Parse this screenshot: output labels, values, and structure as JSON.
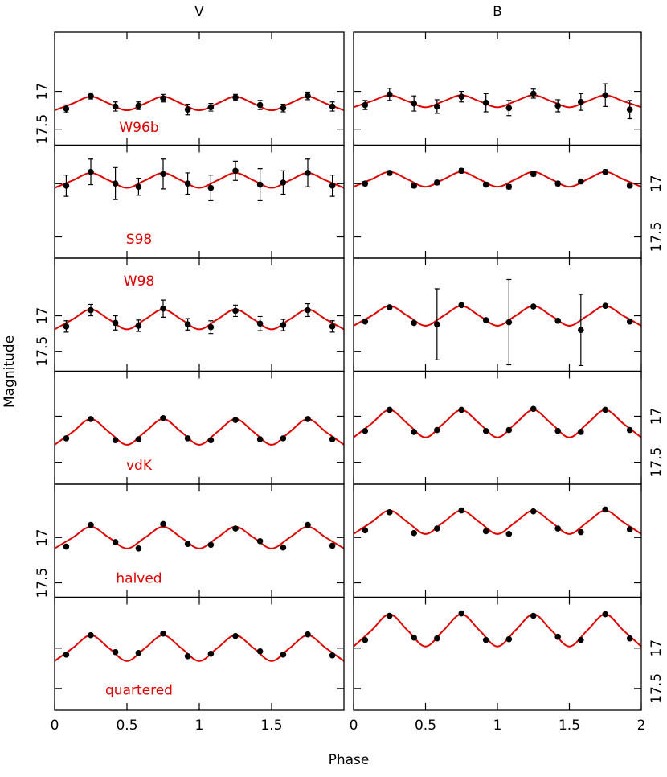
{
  "figure": {
    "xlabel": "Phase",
    "ylabel": "Magnitude"
  },
  "chart_data": [
    {
      "type": "scatter",
      "title": "V",
      "label": "W96b",
      "ylim": [
        17.71,
        16.22
      ],
      "yticks": [
        17,
        17.5
      ],
      "ytick_label_side": "left",
      "xlim": [
        0,
        2
      ],
      "xticks": [
        0,
        0.5,
        1,
        1.5
      ],
      "xtick_labels": false,
      "points": {
        "color": "#000000",
        "x": [
          0.08,
          0.25,
          0.42,
          0.58,
          0.75,
          0.92,
          1.08,
          1.25,
          1.42,
          1.58,
          1.75,
          1.92
        ],
        "y": [
          17.23,
          17.06,
          17.2,
          17.19,
          17.09,
          17.24,
          17.21,
          17.08,
          17.18,
          17.22,
          17.06,
          17.2
        ],
        "err": [
          0.05,
          0.04,
          0.06,
          0.05,
          0.05,
          0.07,
          0.05,
          0.04,
          0.06,
          0.05,
          0.05,
          0.06
        ]
      },
      "model": {
        "color": "#e00000",
        "x": [
          0,
          0.125,
          0.25,
          0.375,
          0.5,
          0.625,
          0.75,
          0.875,
          1,
          1.125,
          1.25,
          1.375,
          1.5,
          1.625,
          1.75,
          1.875,
          2
        ],
        "y": [
          17.25,
          17.16,
          17.07,
          17.16,
          17.25,
          17.16,
          17.07,
          17.16,
          17.25,
          17.16,
          17.07,
          17.16,
          17.25,
          17.16,
          17.07,
          17.16,
          17.25
        ]
      }
    },
    {
      "type": "scatter",
      "title": "B",
      "ylim": [
        17.71,
        16.22
      ],
      "yticks": [
        17,
        17.5
      ],
      "ytick_label_side": "none",
      "xlim": [
        0,
        2
      ],
      "xticks": [
        0,
        0.5,
        1,
        1.5,
        2
      ],
      "xtick_labels": false,
      "points": {
        "color": "#000000",
        "x": [
          0.08,
          0.25,
          0.42,
          0.58,
          0.75,
          0.92,
          1.08,
          1.25,
          1.42,
          1.58,
          1.75,
          1.92
        ],
        "y": [
          17.18,
          17.04,
          17.16,
          17.2,
          17.07,
          17.15,
          17.22,
          17.03,
          17.19,
          17.14,
          17.05,
          17.24
        ],
        "err": [
          0.06,
          0.08,
          0.1,
          0.09,
          0.07,
          0.12,
          0.1,
          0.06,
          0.08,
          0.11,
          0.15,
          0.12
        ]
      },
      "model": {
        "color": "#e00000",
        "x": [
          0,
          0.125,
          0.25,
          0.375,
          0.5,
          0.625,
          0.75,
          0.875,
          1,
          1.125,
          1.25,
          1.375,
          1.5,
          1.625,
          1.75,
          1.875,
          2
        ],
        "y": [
          17.21,
          17.13,
          17.05,
          17.13,
          17.21,
          17.13,
          17.05,
          17.13,
          17.21,
          17.13,
          17.05,
          17.13,
          17.21,
          17.13,
          17.05,
          17.13,
          17.21
        ]
      }
    },
    {
      "type": "scatter",
      "label": "S98",
      "ylim": [
        17.7,
        16.64
      ],
      "yticks": [
        17,
        17.5
      ],
      "ytick_label_side": "none",
      "xlim": [
        0,
        2
      ],
      "xticks": [
        0,
        0.5,
        1,
        1.5
      ],
      "xtick_labels": false,
      "points": {
        "color": "#000000",
        "x": [
          0.08,
          0.25,
          0.42,
          0.58,
          0.75,
          0.92,
          1.08,
          1.25,
          1.42,
          1.58,
          1.75,
          1.92
        ],
        "y": [
          17.02,
          16.89,
          17.0,
          17.03,
          16.91,
          17.0,
          17.04,
          16.88,
          17.01,
          16.99,
          16.9,
          17.02
        ],
        "err": [
          0.1,
          0.12,
          0.15,
          0.08,
          0.14,
          0.1,
          0.12,
          0.09,
          0.15,
          0.11,
          0.13,
          0.1
        ]
      },
      "model": {
        "color": "#e00000",
        "x": [
          0,
          0.125,
          0.25,
          0.375,
          0.5,
          0.625,
          0.75,
          0.875,
          1,
          1.125,
          1.25,
          1.375,
          1.5,
          1.625,
          1.75,
          1.875,
          2
        ],
        "y": [
          17.04,
          16.97,
          16.9,
          16.97,
          17.04,
          16.97,
          16.9,
          16.97,
          17.04,
          16.97,
          16.9,
          16.97,
          17.04,
          16.97,
          16.9,
          16.97,
          17.04
        ]
      }
    },
    {
      "type": "scatter",
      "ylim": [
        17.7,
        16.64
      ],
      "yticks": [
        17,
        17.5
      ],
      "ytick_label_side": "right",
      "xlim": [
        0,
        2
      ],
      "xticks": [
        0,
        0.5,
        1,
        1.5,
        2
      ],
      "xtick_labels": false,
      "points": {
        "color": "#000000",
        "x": [
          0.08,
          0.25,
          0.42,
          0.58,
          0.75,
          0.92,
          1.08,
          1.25,
          1.42,
          1.58,
          1.75,
          1.92
        ],
        "y": [
          17.0,
          16.9,
          17.02,
          16.99,
          16.88,
          17.01,
          17.03,
          16.91,
          17.0,
          16.98,
          16.89,
          17.02
        ],
        "err": [
          0.02,
          0.02,
          0.02,
          0.02,
          0.02,
          0.02,
          0.02,
          0.02,
          0.02,
          0.02,
          0.02,
          0.02
        ]
      },
      "model": {
        "color": "#e00000",
        "x": [
          0,
          0.125,
          0.25,
          0.375,
          0.5,
          0.625,
          0.75,
          0.875,
          1,
          1.125,
          1.25,
          1.375,
          1.5,
          1.625,
          1.75,
          1.875,
          2
        ],
        "y": [
          17.03,
          16.96,
          16.89,
          16.96,
          17.03,
          16.96,
          16.89,
          16.96,
          17.03,
          16.96,
          16.89,
          16.96,
          17.03,
          16.96,
          16.89,
          16.96,
          17.03
        ]
      }
    },
    {
      "type": "scatter",
      "label": "W98",
      "ylim": [
        17.78,
        16.19
      ],
      "yticks": [
        17,
        17.5
      ],
      "ytick_label_side": "left",
      "xlim": [
        0,
        2
      ],
      "xticks": [
        0,
        0.5,
        1,
        1.5
      ],
      "xtick_labels": false,
      "points": {
        "color": "#000000",
        "x": [
          0.08,
          0.25,
          0.42,
          0.58,
          0.75,
          0.92,
          1.08,
          1.25,
          1.42,
          1.58,
          1.75,
          1.92
        ],
        "y": [
          17.15,
          16.92,
          17.1,
          17.14,
          16.9,
          17.12,
          17.16,
          16.93,
          17.11,
          17.13,
          16.92,
          17.15
        ],
        "err": [
          0.08,
          0.08,
          0.1,
          0.08,
          0.12,
          0.08,
          0.09,
          0.08,
          0.1,
          0.08,
          0.09,
          0.08
        ]
      },
      "model": {
        "color": "#e00000",
        "x": [
          0,
          0.125,
          0.25,
          0.375,
          0.5,
          0.625,
          0.75,
          0.875,
          1,
          1.125,
          1.25,
          1.375,
          1.5,
          1.625,
          1.75,
          1.875,
          2
        ],
        "y": [
          17.19,
          17.05,
          16.91,
          17.05,
          17.19,
          17.05,
          16.91,
          17.05,
          17.19,
          17.05,
          16.91,
          17.05,
          17.19,
          17.05,
          16.91,
          17.05,
          17.19
        ]
      }
    },
    {
      "type": "scatter",
      "ylim": [
        17.78,
        16.19
      ],
      "yticks": [
        17,
        17.5
      ],
      "ytick_label_side": "none",
      "xlim": [
        0,
        2
      ],
      "xticks": [
        0,
        0.5,
        1,
        1.5,
        2
      ],
      "xtick_labels": false,
      "points": {
        "color": "#000000",
        "x": [
          0.08,
          0.25,
          0.42,
          0.58,
          0.75,
          0.92,
          1.08,
          1.25,
          1.42,
          1.58,
          1.75,
          1.92
        ],
        "y": [
          17.08,
          16.88,
          17.1,
          17.12,
          16.85,
          17.06,
          17.09,
          16.87,
          17.07,
          17.2,
          16.86,
          17.08
        ],
        "err": [
          0.02,
          0.02,
          0.02,
          0.5,
          0.02,
          0.02,
          0.6,
          0.02,
          0.02,
          0.5,
          0.02,
          0.02
        ]
      },
      "model": {
        "color": "#e00000",
        "x": [
          0,
          0.125,
          0.25,
          0.375,
          0.5,
          0.625,
          0.75,
          0.875,
          1,
          1.125,
          1.25,
          1.375,
          1.5,
          1.625,
          1.75,
          1.875,
          2
        ],
        "y": [
          17.14,
          17.0,
          16.86,
          17.0,
          17.14,
          17.0,
          16.86,
          17.0,
          17.14,
          17.0,
          16.86,
          17.0,
          17.14,
          17.0,
          16.86,
          17.0,
          17.14
        ]
      }
    },
    {
      "type": "scatter",
      "label": "vdK",
      "ylim": [
        17.74,
        16.51
      ],
      "yticks": [
        17,
        17.5
      ],
      "ytick_label_side": "none",
      "xlim": [
        0,
        2
      ],
      "xticks": [
        0,
        0.5,
        1,
        1.5
      ],
      "xtick_labels": false,
      "points": {
        "color": "#000000",
        "x": [
          0.08,
          0.25,
          0.42,
          0.58,
          0.75,
          0.92,
          1.08,
          1.25,
          1.42,
          1.58,
          1.75,
          1.92
        ],
        "y": [
          17.24,
          17.03,
          17.26,
          17.25,
          17.02,
          17.24,
          17.26,
          17.04,
          17.25,
          17.24,
          17.03,
          17.25
        ],
        "err": [
          0.01,
          0.01,
          0.01,
          0.01,
          0.01,
          0.01,
          0.01,
          0.01,
          0.01,
          0.01,
          0.01,
          0.01
        ]
      },
      "model": {
        "color": "#e00000",
        "x": [
          0,
          0.125,
          0.25,
          0.375,
          0.5,
          0.625,
          0.75,
          0.875,
          1,
          1.125,
          1.25,
          1.375,
          1.5,
          1.625,
          1.75,
          1.875,
          2
        ],
        "y": [
          17.31,
          17.17,
          17.03,
          17.17,
          17.31,
          17.17,
          17.03,
          17.17,
          17.31,
          17.17,
          17.03,
          17.17,
          17.31,
          17.17,
          17.03,
          17.17,
          17.31
        ]
      }
    },
    {
      "type": "scatter",
      "ylim": [
        17.74,
        16.51
      ],
      "yticks": [
        17,
        17.5
      ],
      "ytick_label_side": "right",
      "xlim": [
        0,
        2
      ],
      "xticks": [
        0,
        0.5,
        1,
        1.5,
        2
      ],
      "xtick_labels": false,
      "points": {
        "color": "#000000",
        "x": [
          0.08,
          0.25,
          0.42,
          0.58,
          0.75,
          0.92,
          1.08,
          1.25,
          1.42,
          1.58,
          1.75,
          1.92
        ],
        "y": [
          17.16,
          16.93,
          17.17,
          17.15,
          16.93,
          17.16,
          17.15,
          16.92,
          17.16,
          17.17,
          16.93,
          17.15
        ],
        "err": [
          0.01,
          0.01,
          0.01,
          0.01,
          0.01,
          0.01,
          0.01,
          0.01,
          0.01,
          0.01,
          0.01,
          0.01
        ]
      },
      "model": {
        "color": "#e00000",
        "x": [
          0,
          0.125,
          0.25,
          0.375,
          0.5,
          0.625,
          0.75,
          0.875,
          1,
          1.125,
          1.25,
          1.375,
          1.5,
          1.625,
          1.75,
          1.875,
          2
        ],
        "y": [
          17.23,
          17.08,
          16.93,
          17.08,
          17.23,
          17.08,
          16.93,
          17.08,
          17.23,
          17.08,
          16.93,
          17.08,
          17.23,
          17.08,
          16.93,
          17.08,
          17.23
        ]
      }
    },
    {
      "type": "scatter",
      "label": "halved",
      "ylim": [
        17.66,
        16.41
      ],
      "yticks": [
        17,
        17.5
      ],
      "ytick_label_side": "left",
      "xlim": [
        0,
        2
      ],
      "xticks": [
        0,
        0.5,
        1,
        1.5
      ],
      "xtick_labels": false,
      "points": {
        "color": "#000000",
        "x": [
          0.08,
          0.25,
          0.42,
          0.58,
          0.75,
          0.92,
          1.08,
          1.25,
          1.42,
          1.58,
          1.75,
          1.92
        ],
        "y": [
          17.1,
          16.86,
          17.05,
          17.12,
          16.85,
          17.07,
          17.08,
          16.9,
          17.04,
          17.11,
          16.86,
          17.09
        ]
      },
      "model": {
        "color": "#e00000",
        "x": [
          0,
          0.125,
          0.25,
          0.375,
          0.5,
          0.625,
          0.75,
          0.875,
          1,
          1.125,
          1.25,
          1.375,
          1.5,
          1.625,
          1.75,
          1.875,
          2
        ],
        "y": [
          17.12,
          17.0,
          16.88,
          17.0,
          17.12,
          17.0,
          16.88,
          17.0,
          17.12,
          17.0,
          16.88,
          17.0,
          17.12,
          17.0,
          16.88,
          17.0,
          17.12
        ]
      }
    },
    {
      "type": "scatter",
      "ylim": [
        17.66,
        16.41
      ],
      "yticks": [
        17,
        17.5
      ],
      "ytick_label_side": "none",
      "xlim": [
        0,
        2
      ],
      "xticks": [
        0,
        0.5,
        1,
        1.5,
        2
      ],
      "xtick_labels": false,
      "points": {
        "color": "#000000",
        "x": [
          0.08,
          0.25,
          0.42,
          0.58,
          0.75,
          0.92,
          1.08,
          1.25,
          1.42,
          1.58,
          1.75,
          1.92
        ],
        "y": [
          16.92,
          16.72,
          16.95,
          16.9,
          16.7,
          16.93,
          16.96,
          16.71,
          16.9,
          16.94,
          16.69,
          16.91
        ]
      },
      "model": {
        "color": "#e00000",
        "x": [
          0,
          0.125,
          0.25,
          0.375,
          0.5,
          0.625,
          0.75,
          0.875,
          1,
          1.125,
          1.25,
          1.375,
          1.5,
          1.625,
          1.75,
          1.875,
          2
        ],
        "y": [
          16.96,
          16.83,
          16.7,
          16.83,
          16.96,
          16.83,
          16.7,
          16.83,
          16.96,
          16.83,
          16.7,
          16.83,
          16.96,
          16.83,
          16.7,
          16.83,
          16.96
        ]
      }
    },
    {
      "type": "scatter",
      "label": "quartered",
      "ylim": [
        17.77,
        16.37
      ],
      "yticks": [
        17,
        17.5
      ],
      "ytick_label_side": "none",
      "xlim": [
        0,
        2
      ],
      "xticks": [
        0,
        0.5,
        1,
        1.5
      ],
      "xtick_labels": true,
      "points": {
        "color": "#000000",
        "x": [
          0.08,
          0.25,
          0.42,
          0.58,
          0.75,
          0.92,
          1.08,
          1.25,
          1.42,
          1.58,
          1.75,
          1.92
        ],
        "y": [
          17.08,
          16.84,
          17.05,
          17.06,
          16.82,
          17.1,
          17.07,
          16.85,
          17.04,
          17.08,
          16.83,
          17.09
        ]
      },
      "model": {
        "color": "#e00000",
        "x": [
          0,
          0.125,
          0.25,
          0.375,
          0.5,
          0.625,
          0.75,
          0.875,
          1,
          1.125,
          1.25,
          1.375,
          1.5,
          1.625,
          1.75,
          1.875,
          2
        ],
        "y": [
          17.16,
          17.0,
          16.84,
          17.0,
          17.16,
          17.0,
          16.84,
          17.0,
          17.16,
          17.0,
          16.84,
          17.0,
          17.16,
          17.0,
          16.84,
          17.0,
          17.16
        ]
      }
    },
    {
      "type": "scatter",
      "ylim": [
        17.77,
        16.37
      ],
      "yticks": [
        17,
        17.5
      ],
      "ytick_label_side": "right",
      "xlim": [
        0,
        2
      ],
      "xticks": [
        0,
        0.5,
        1,
        1.5,
        2
      ],
      "xtick_labels": true,
      "points": {
        "color": "#000000",
        "x": [
          0.08,
          0.25,
          0.42,
          0.58,
          0.75,
          0.92,
          1.08,
          1.25,
          1.42,
          1.58,
          1.75,
          1.92
        ],
        "y": [
          16.9,
          16.6,
          16.87,
          16.88,
          16.57,
          16.9,
          16.89,
          16.6,
          16.86,
          16.9,
          16.58,
          16.88
        ]
      },
      "model": {
        "color": "#e00000",
        "x": [
          0,
          0.125,
          0.25,
          0.375,
          0.5,
          0.625,
          0.75,
          0.875,
          1,
          1.125,
          1.25,
          1.375,
          1.5,
          1.625,
          1.75,
          1.875,
          2
        ],
        "y": [
          16.98,
          16.78,
          16.58,
          16.78,
          16.98,
          16.78,
          16.58,
          16.78,
          16.98,
          16.78,
          16.58,
          16.78,
          16.98,
          16.78,
          16.58,
          16.78,
          16.98
        ]
      }
    }
  ]
}
